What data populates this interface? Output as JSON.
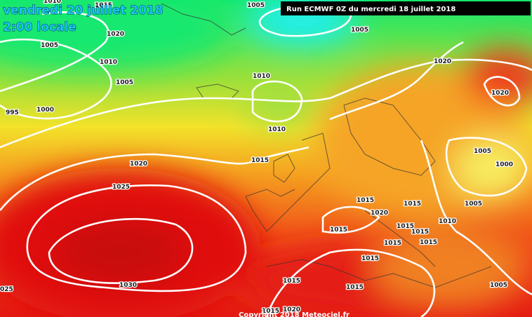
{
  "header": {
    "date": "vendredi 20 juillet 2018",
    "time": "2:00 locale",
    "run": "Run ECMWF 0Z du mercredi 18 juillet 2018"
  },
  "isobars": [
    "1010",
    "1015",
    "1005",
    "1005",
    "1020",
    "1005",
    "1010",
    "1005",
    "1010",
    "1020",
    "1020",
    "995",
    "1000",
    "1010",
    "1015",
    "1020",
    "1025",
    "1005",
    "1000",
    "1015",
    "1015",
    "1020",
    "1005",
    "1010",
    "1015",
    "1015",
    "1015",
    "1015",
    "1015",
    "1015",
    "1015",
    "1005",
    "1015",
    "1030",
    "025",
    "1015",
    "1020"
  ],
  "footer": {
    "copyright": "Copyright 2018 Meteociel.fr"
  }
}
